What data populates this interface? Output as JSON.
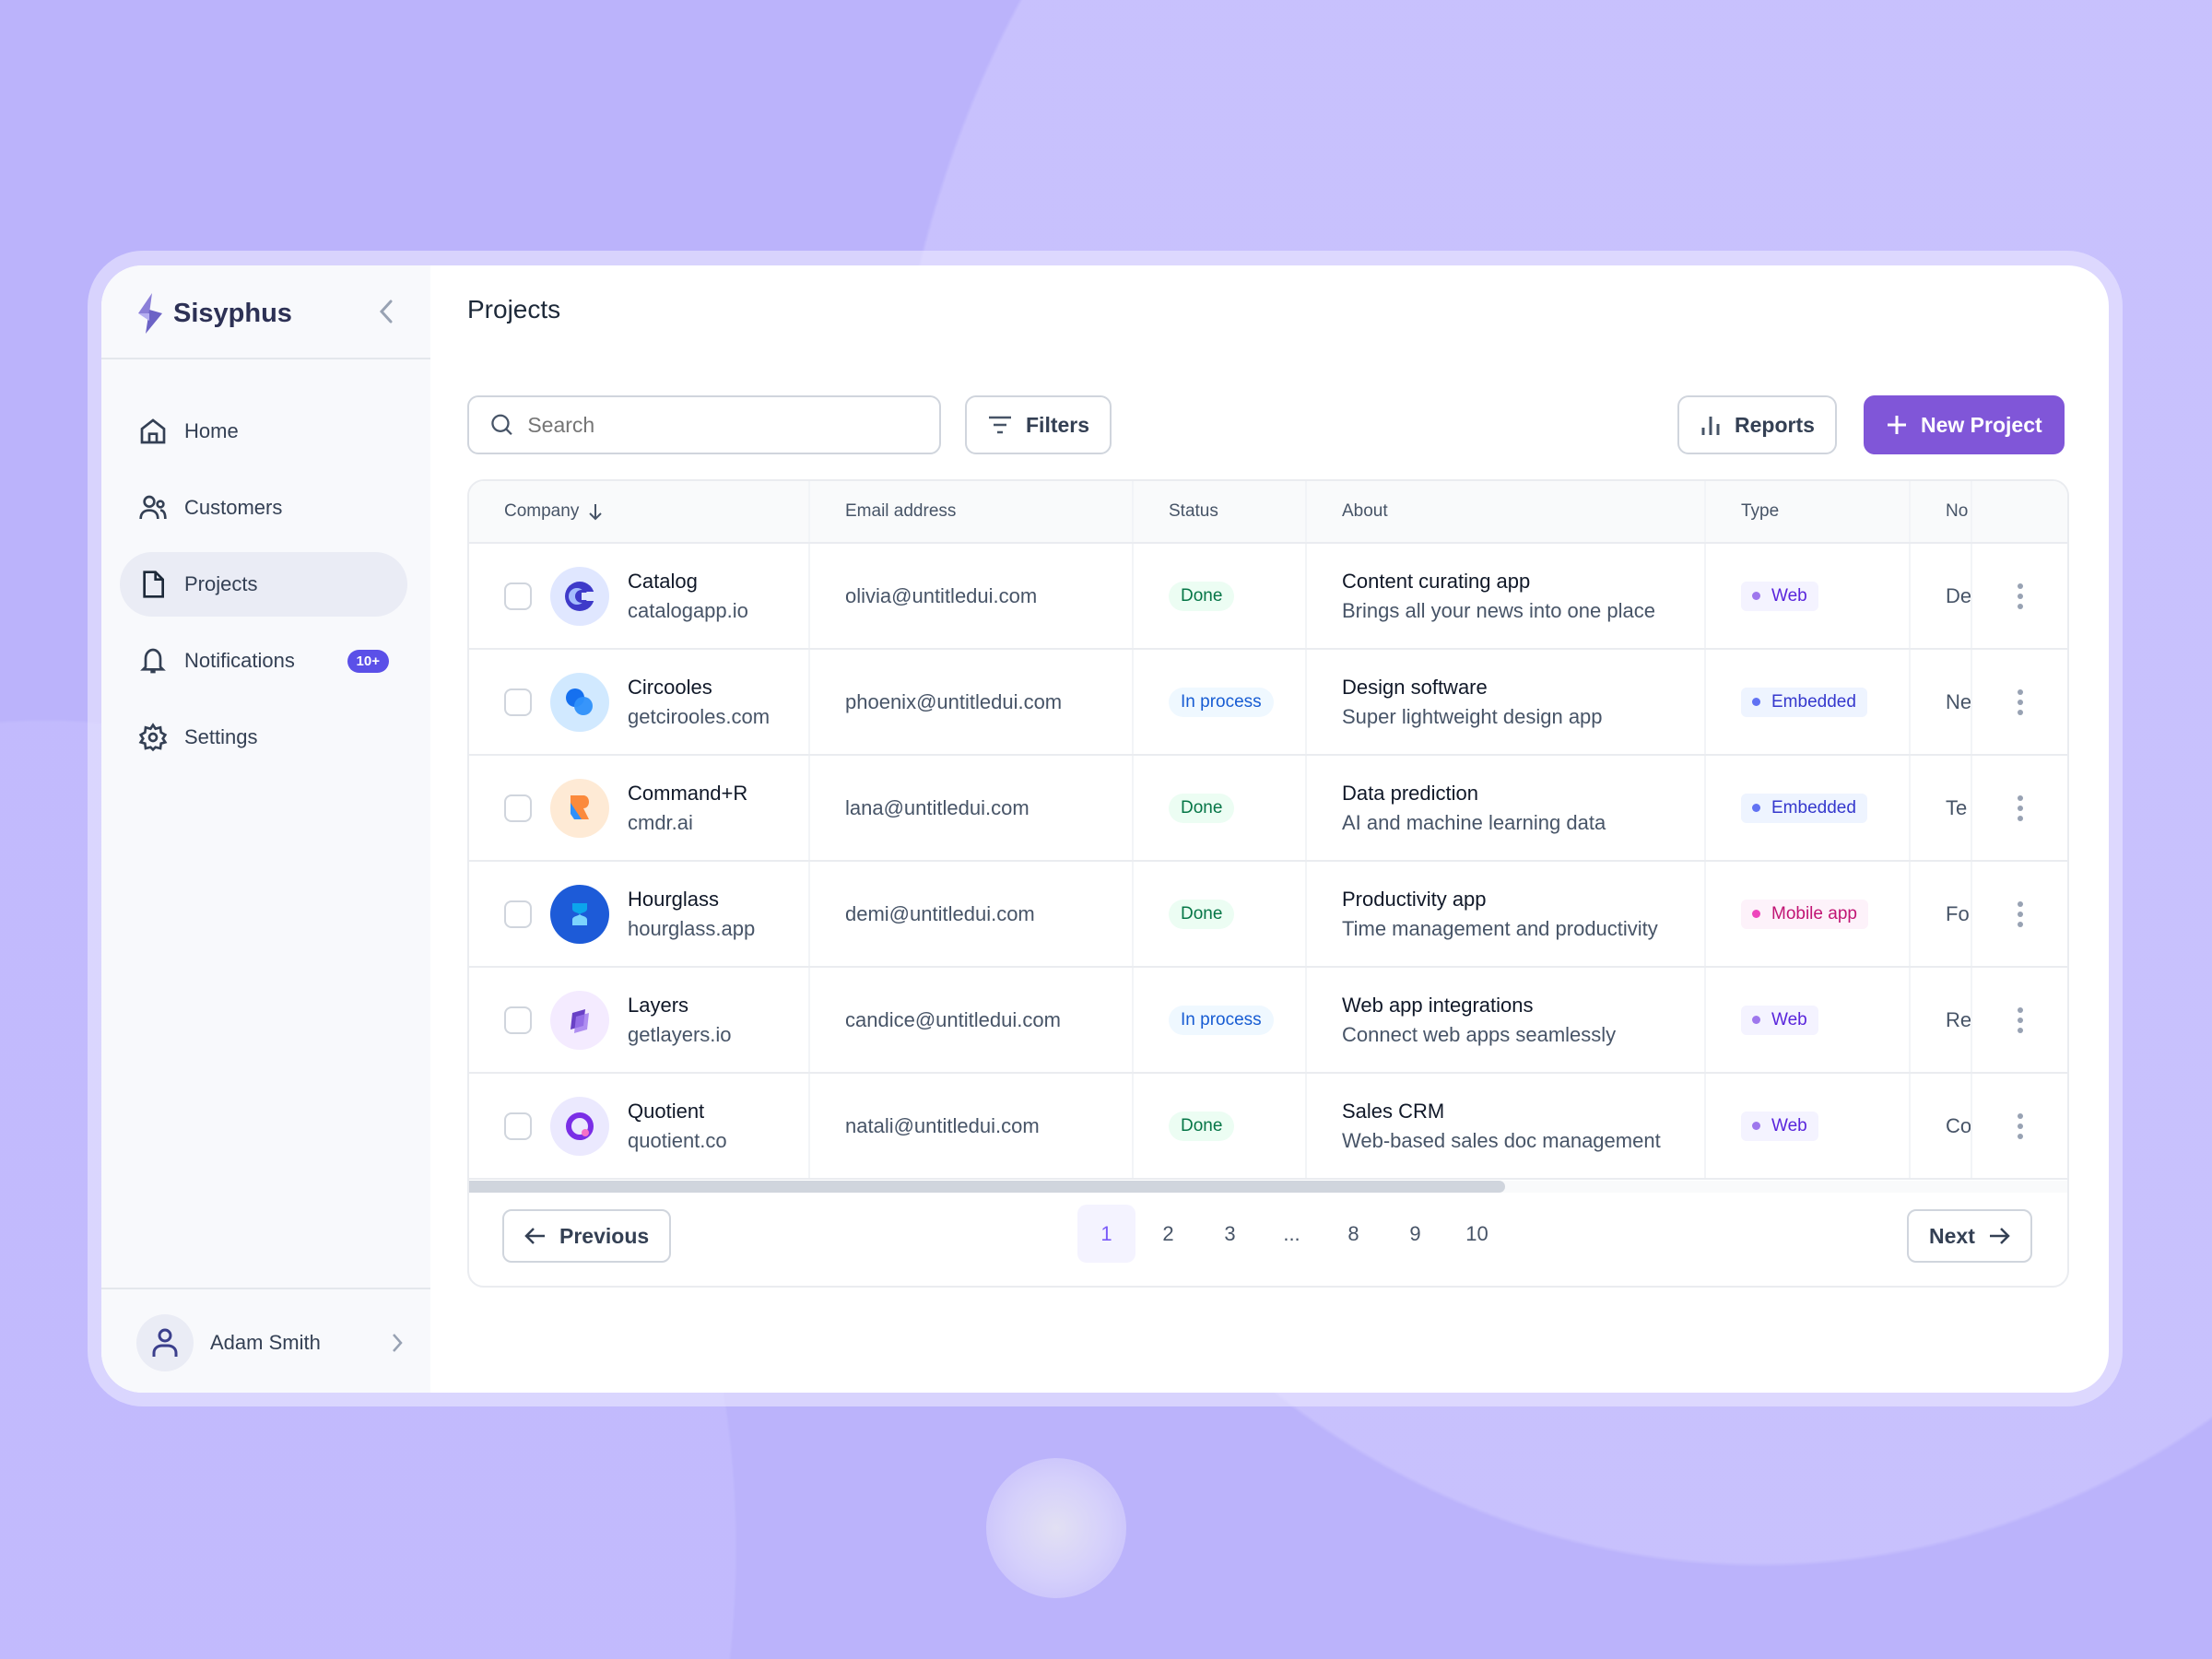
{
  "app": {
    "name": "Sisyphus"
  },
  "sidebar": {
    "items": [
      {
        "label": "Home",
        "icon": "home-icon"
      },
      {
        "label": "Customers",
        "icon": "users-icon"
      },
      {
        "label": "Projects",
        "icon": "file-icon",
        "active": true
      },
      {
        "label": "Notifications",
        "icon": "bell-icon",
        "badge": "10+"
      },
      {
        "label": "Settings",
        "icon": "gear-icon"
      }
    ],
    "user": {
      "name": "Adam Smith"
    }
  },
  "header": {
    "title": "Projects"
  },
  "toolbar": {
    "search_placeholder": "Search",
    "filters": "Filters",
    "reports": "Reports",
    "new_project": "New Project"
  },
  "colors": {
    "accent": "#8056d8",
    "badge": "#5b50e8",
    "done": "#067647",
    "in_process": "#175cd3",
    "background": "#bbb3fb"
  },
  "table": {
    "columns": [
      "Company",
      "Email address",
      "Status",
      "About",
      "Type",
      "No"
    ],
    "rows": [
      {
        "company": "Catalog",
        "domain": "catalogapp.io",
        "email": "olivia@untitledui.com",
        "status": "Done",
        "about": "Content curating app",
        "about_sub": "Brings all your news into one place",
        "type": "Web",
        "no": "De"
      },
      {
        "company": "Circooles",
        "domain": "getcirooles.com",
        "email": "phoenix@untitledui.com",
        "status": "In process",
        "about": "Design software",
        "about_sub": "Super lightweight design app",
        "type": "Embedded",
        "no": "Ne"
      },
      {
        "company": "Command+R",
        "domain": "cmdr.ai",
        "email": "lana@untitledui.com",
        "status": "Done",
        "about": "Data prediction",
        "about_sub": "AI and machine learning data",
        "type": "Embedded",
        "no": "Te"
      },
      {
        "company": "Hourglass",
        "domain": "hourglass.app",
        "email": "demi@untitledui.com",
        "status": "Done",
        "about": "Productivity app",
        "about_sub": "Time management and productivity",
        "type": "Mobile app",
        "no": "Fo"
      },
      {
        "company": "Layers",
        "domain": "getlayers.io",
        "email": "candice@untitledui.com",
        "status": "In process",
        "about": "Web app integrations",
        "about_sub": "Connect web apps seamlessly",
        "type": "Web",
        "no": "Re"
      },
      {
        "company": "Quotient",
        "domain": "quotient.co",
        "email": "natali@untitledui.com",
        "status": "Done",
        "about": "Sales CRM",
        "about_sub": "Web-based sales doc management",
        "type": "Web",
        "no": "Co"
      }
    ]
  },
  "pagination": {
    "previous": "Previous",
    "next": "Next",
    "pages": [
      "1",
      "2",
      "3",
      "...",
      "8",
      "9",
      "10"
    ],
    "current": "1"
  }
}
